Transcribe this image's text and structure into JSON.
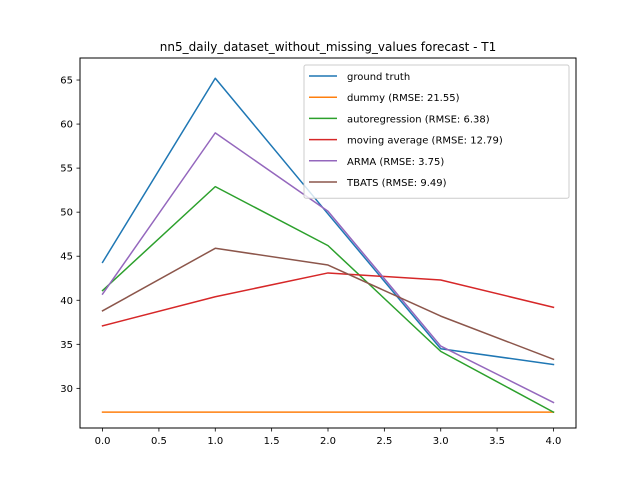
{
  "chart_data": {
    "type": "line",
    "title": "nn5_daily_dataset_without_missing_values forecast - T1",
    "xlabel": "",
    "ylabel": "",
    "x": [
      0,
      1,
      2,
      3,
      4
    ],
    "xlim": [
      -0.2,
      4.2
    ],
    "ylim": [
      25.5,
      67.5
    ],
    "xticks": [
      0.0,
      0.5,
      1.0,
      1.5,
      2.0,
      2.5,
      3.0,
      3.5,
      4.0
    ],
    "xtick_labels": [
      "0.0",
      "0.5",
      "1.0",
      "1.5",
      "2.0",
      "2.5",
      "3.0",
      "3.5",
      "4.0"
    ],
    "yticks": [
      30,
      35,
      40,
      45,
      50,
      55,
      60,
      65
    ],
    "ytick_labels": [
      "30",
      "35",
      "40",
      "45",
      "50",
      "55",
      "60",
      "65"
    ],
    "grid": false,
    "legend_position": "top-right",
    "series": [
      {
        "name": "ground truth",
        "color": "#1f77b4",
        "values": [
          44.3,
          65.2,
          49.8,
          34.5,
          32.7
        ]
      },
      {
        "name": "dummy (RMSE: 21.55)",
        "color": "#ff7f0e",
        "values": [
          27.3,
          27.3,
          27.3,
          27.3,
          27.3
        ]
      },
      {
        "name": "autoregression (RMSE: 6.38)",
        "color": "#2ca02c",
        "values": [
          41.1,
          52.9,
          46.2,
          34.2,
          27.3
        ]
      },
      {
        "name": "moving average (RMSE: 12.79)",
        "color": "#d62728",
        "values": [
          37.1,
          40.4,
          43.1,
          42.3,
          39.2
        ]
      },
      {
        "name": "ARMA (RMSE: 3.75)",
        "color": "#9467bd",
        "values": [
          40.7,
          59.0,
          50.1,
          34.8,
          28.4
        ]
      },
      {
        "name": "TBATS (RMSE: 9.49)",
        "color": "#8c564b",
        "values": [
          38.8,
          45.9,
          44.0,
          38.2,
          33.3
        ]
      }
    ]
  }
}
